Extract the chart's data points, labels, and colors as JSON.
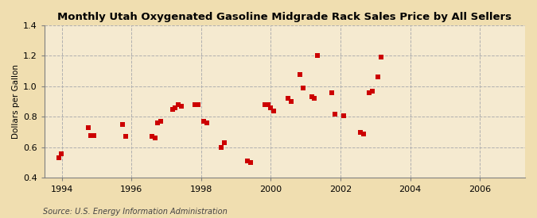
{
  "title": "Monthly Utah Oxygenated Gasoline Midgrade Rack Sales Price by All Sellers",
  "ylabel": "Dollars per Gallon",
  "source": "Source: U.S. Energy Information Administration",
  "fig_bg_color": "#f0deb0",
  "plot_bg_color": "#f5ead0",
  "marker_color": "#cc0000",
  "marker_size": 16,
  "xlim": [
    1993.5,
    2007.3
  ],
  "ylim": [
    0.4,
    1.4
  ],
  "yticks": [
    0.4,
    0.6,
    0.8,
    1.0,
    1.2,
    1.4
  ],
  "xticks": [
    1994,
    1996,
    1998,
    2000,
    2002,
    2004,
    2006
  ],
  "points_x": [
    1993.92,
    1993.97,
    1994.75,
    1994.83,
    1994.92,
    1995.75,
    1995.83,
    1996.58,
    1996.67,
    1996.75,
    1996.83,
    1997.17,
    1997.25,
    1997.33,
    1997.42,
    1997.83,
    1997.92,
    1998.08,
    1998.17,
    1998.58,
    1998.67,
    1999.33,
    1999.42,
    1999.83,
    1999.92,
    2000.0,
    2000.08,
    2000.5,
    2000.58,
    2000.83,
    2000.92,
    2001.17,
    2001.25,
    2001.33,
    2001.75,
    2001.83,
    2002.08,
    2002.58,
    2002.67,
    2002.83,
    2002.92,
    2003.08,
    2003.17
  ],
  "points_y": [
    0.53,
    0.56,
    0.73,
    0.68,
    0.68,
    0.75,
    0.67,
    0.67,
    0.66,
    0.76,
    0.77,
    0.85,
    0.86,
    0.88,
    0.87,
    0.88,
    0.88,
    0.77,
    0.76,
    0.6,
    0.63,
    0.51,
    0.5,
    0.88,
    0.88,
    0.86,
    0.84,
    0.92,
    0.9,
    1.08,
    0.99,
    0.93,
    0.92,
    1.2,
    0.96,
    0.82,
    0.81,
    0.7,
    0.69,
    0.96,
    0.97,
    1.06,
    1.19
  ],
  "grid_color": "#b0b0b0",
  "grid_linestyle": "--",
  "grid_linewidth": 0.7,
  "spine_color": "#808080",
  "title_fontsize": 9.5,
  "axis_fontsize": 7.5,
  "tick_fontsize": 8,
  "source_fontsize": 7
}
